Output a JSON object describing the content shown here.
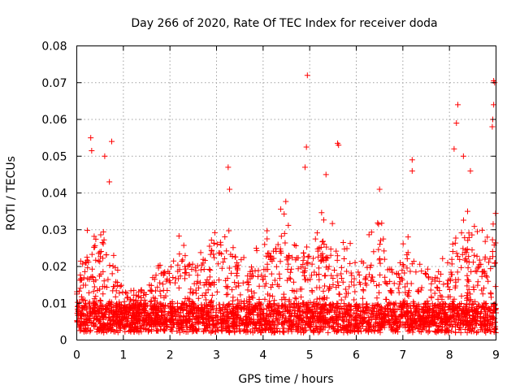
{
  "chart_data": {
    "type": "scatter",
    "title": "Day 266 of 2020, Rate Of TEC Index for receiver doda",
    "xlabel": "GPS time / hours",
    "ylabel": "ROTI / TECUs",
    "xlim": [
      0,
      9
    ],
    "ylim": [
      0,
      0.08
    ],
    "grid": true,
    "marker": "+",
    "color": "#ff0000",
    "xticks": [
      "0",
      "1",
      "2",
      "3",
      "4",
      "5",
      "6",
      "7",
      "8",
      "9"
    ],
    "yticks": [
      "0",
      "0.01",
      "0.02",
      "0.03",
      "0.04",
      "0.05",
      "0.06",
      "0.07",
      "0.08"
    ],
    "notable_points": [
      {
        "x": 0.3,
        "y": 0.055
      },
      {
        "x": 0.32,
        "y": 0.0515
      },
      {
        "x": 0.6,
        "y": 0.05
      },
      {
        "x": 0.75,
        "y": 0.054
      },
      {
        "x": 0.7,
        "y": 0.043
      },
      {
        "x": 3.25,
        "y": 0.047
      },
      {
        "x": 3.28,
        "y": 0.041
      },
      {
        "x": 4.95,
        "y": 0.072
      },
      {
        "x": 4.93,
        "y": 0.0525
      },
      {
        "x": 4.9,
        "y": 0.047
      },
      {
        "x": 5.35,
        "y": 0.045
      },
      {
        "x": 5.6,
        "y": 0.0535
      },
      {
        "x": 5.62,
        "y": 0.053
      },
      {
        "x": 6.5,
        "y": 0.041
      },
      {
        "x": 7.2,
        "y": 0.049
      },
      {
        "x": 7.2,
        "y": 0.046
      },
      {
        "x": 8.1,
        "y": 0.052
      },
      {
        "x": 8.18,
        "y": 0.064
      },
      {
        "x": 8.15,
        "y": 0.059
      },
      {
        "x": 8.3,
        "y": 0.05
      },
      {
        "x": 8.45,
        "y": 0.046
      },
      {
        "x": 8.95,
        "y": 0.0705
      },
      {
        "x": 8.97,
        "y": 0.07
      },
      {
        "x": 8.95,
        "y": 0.064
      },
      {
        "x": 8.93,
        "y": 0.06
      },
      {
        "x": 8.92,
        "y": 0.058
      }
    ],
    "activity_profile": [
      {
        "x": 0.0,
        "level": 0.012
      },
      {
        "x": 0.35,
        "level": 0.025
      },
      {
        "x": 0.6,
        "level": 0.022
      },
      {
        "x": 0.9,
        "level": 0.012
      },
      {
        "x": 1.3,
        "level": 0.009
      },
      {
        "x": 1.8,
        "level": 0.014
      },
      {
        "x": 2.2,
        "level": 0.02
      },
      {
        "x": 2.6,
        "level": 0.017
      },
      {
        "x": 3.0,
        "level": 0.022
      },
      {
        "x": 3.3,
        "level": 0.02
      },
      {
        "x": 3.8,
        "level": 0.016
      },
      {
        "x": 4.5,
        "level": 0.026
      },
      {
        "x": 4.8,
        "level": 0.018
      },
      {
        "x": 5.3,
        "level": 0.024
      },
      {
        "x": 5.7,
        "level": 0.02
      },
      {
        "x": 6.0,
        "level": 0.016
      },
      {
        "x": 6.5,
        "level": 0.023
      },
      {
        "x": 6.8,
        "level": 0.015
      },
      {
        "x": 7.2,
        "level": 0.02
      },
      {
        "x": 7.6,
        "level": 0.014
      },
      {
        "x": 8.0,
        "level": 0.016
      },
      {
        "x": 8.4,
        "level": 0.026
      },
      {
        "x": 8.7,
        "level": 0.02
      },
      {
        "x": 9.0,
        "level": 0.024
      }
    ],
    "bulk_count": 3400
  }
}
